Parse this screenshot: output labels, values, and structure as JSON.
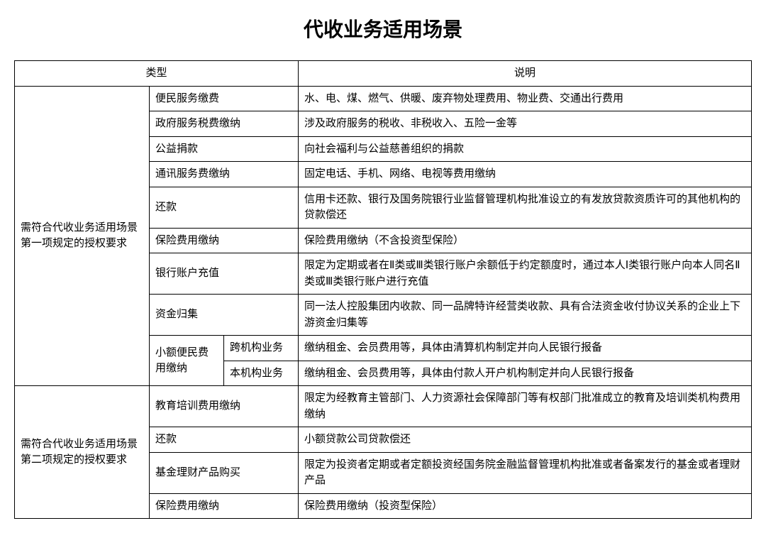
{
  "title": "代收业务适用场景",
  "headers": {
    "type": "类型",
    "desc": "说明"
  },
  "group1": {
    "label": "需符合代收业务适用场景第一项规定的授权要求",
    "rows": [
      {
        "cat": "便民服务缴费",
        "desc": "水、电、煤、燃气、供暖、废弃物处理费用、物业费、交通出行费用"
      },
      {
        "cat": "政府服务税费缴纳",
        "desc": "涉及政府服务的税收、非税收入、五险一金等"
      },
      {
        "cat": "公益捐款",
        "desc": "向社会福利与公益慈善组织的捐款"
      },
      {
        "cat": "通讯服务费缴纳",
        "desc": "固定电话、手机、网络、电视等费用缴纳"
      },
      {
        "cat": "还款",
        "desc": "信用卡还款、银行及国务院银行业监督管理机构批准设立的有发放贷款资质许可的其他机构的贷款偿还"
      },
      {
        "cat": "保险费用缴纳",
        "desc": "保险费用缴纳（不含投资型保险）"
      },
      {
        "cat": "银行账户充值",
        "desc": "限定为定期或者在Ⅱ类或Ⅲ类银行账户余额低于约定额度时，通过本人Ⅰ类银行账户向本人同名Ⅱ类或Ⅲ类银行账户进行充值"
      },
      {
        "cat": "资金归集",
        "desc": "同一法人控股集团内收款、同一品牌特许经营类收款、具有合法资金收付协议关系的企业上下游资金归集等"
      }
    ],
    "subgroup": {
      "label": "小额便民费用缴纳",
      "rows": [
        {
          "sub": "跨机构业务",
          "desc": "缴纳租金、会员费用等，具体由清算机构制定并向人民银行报备"
        },
        {
          "sub": "本机构业务",
          "desc": "缴纳租金、会员费用等，具体由付款人开户机构制定并向人民银行报备"
        }
      ]
    }
  },
  "group2": {
    "label": "需符合代收业务适用场景第二项规定的授权要求",
    "rows": [
      {
        "cat": "教育培训费用缴纳",
        "desc": "限定为经教育主管部门、人力资源社会保障部门等有权部门批准成立的教育及培训类机构费用缴纳"
      },
      {
        "cat": "还款",
        "desc": "小额贷款公司贷款偿还"
      },
      {
        "cat": "基金理财产品购买",
        "desc": "限定为投资者定期或者定额投资经国务院金融监督管理机构批准或者备案发行的基金或者理财产品"
      },
      {
        "cat": "保险费用缴纳",
        "desc": "保险费用缴纳（投资型保险）"
      }
    ]
  }
}
